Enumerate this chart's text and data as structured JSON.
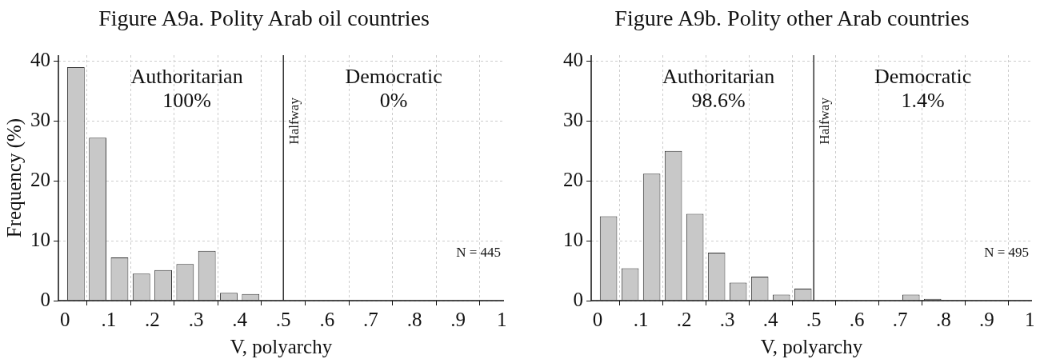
{
  "chart_data": [
    {
      "type": "histogram",
      "title": "Figure A9a. Polity Arab oil countries",
      "xlabel": "V, polyarchy",
      "ylabel": "Frequency (%)",
      "bins": [
        0,
        0.05,
        0.1,
        0.15,
        0.2,
        0.25,
        0.3,
        0.35,
        0.4,
        0.45,
        0.5,
        0.55,
        0.6,
        0.65,
        0.7,
        0.75,
        0.8,
        0.85,
        0.9,
        0.95,
        1
      ],
      "values": [
        39,
        27.2,
        7.2,
        4.5,
        5.1,
        6.1,
        8.3,
        1.3,
        1.1,
        0,
        0,
        0,
        0,
        0,
        0,
        0,
        0,
        0,
        0,
        0
      ],
      "color": "#c8c8c8",
      "xlim": [
        -0.015,
        1.005
      ],
      "xticks": [
        {
          "value": 0,
          "label": "0"
        },
        {
          "value": 0.1,
          "label": ".1"
        },
        {
          "value": 0.2,
          "label": ".2"
        },
        {
          "value": 0.3,
          "label": ".3"
        },
        {
          "value": 0.4,
          "label": ".4"
        },
        {
          "value": 0.5,
          "label": ".5"
        },
        {
          "value": 0.6,
          "label": ".6"
        },
        {
          "value": 0.7,
          "label": ".7"
        },
        {
          "value": 0.8,
          "label": ".8"
        },
        {
          "value": 0.9,
          "label": ".9"
        },
        1
      ],
      "ylim": [
        0,
        41
      ],
      "yticks": [
        0,
        10,
        20,
        30,
        40
      ],
      "grid": true,
      "legend": false,
      "ref_lines": [
        {
          "axis": "x",
          "value": 0.5,
          "label": "Halfway",
          "color": "#333333"
        }
      ],
      "annotations": [
        "Authoritarian\n100%",
        "Democratic\n0%",
        "N = 445"
      ]
    },
    {
      "type": "histogram",
      "title": "Figure A9b. Polity other Arab countries",
      "xlabel": "V, polyarchy",
      "bins": [
        0,
        0.05,
        0.1,
        0.15,
        0.2,
        0.25,
        0.3,
        0.35,
        0.4,
        0.45,
        0.5,
        0.55,
        0.6,
        0.65,
        0.7,
        0.75,
        0.8,
        0.85,
        0.9,
        0.95,
        1
      ],
      "values": [
        14.1,
        5.4,
        21.2,
        25,
        14.5,
        8,
        3,
        4,
        1,
        2,
        0,
        0,
        0,
        0,
        1,
        0.3,
        0,
        0,
        0,
        0
      ],
      "color": "#c8c8c8",
      "xlim": [
        -0.015,
        1.005
      ],
      "xticks": [
        {
          "value": 0,
          "label": "0"
        },
        {
          "value": 0.1,
          "label": ".1"
        },
        {
          "value": 0.2,
          "label": ".2"
        },
        {
          "value": 0.3,
          "label": ".3"
        },
        {
          "value": 0.4,
          "label": ".4"
        },
        {
          "value": 0.5,
          "label": ".5"
        },
        {
          "value": 0.6,
          "label": ".6"
        },
        {
          "value": 0.7,
          "label": ".7"
        },
        {
          "value": 0.8,
          "label": ".8"
        },
        {
          "value": 0.9,
          "label": ".9"
        },
        1
      ],
      "ylim": [
        0,
        41
      ],
      "yticks": [
        0,
        10,
        20,
        30,
        40
      ],
      "grid": true,
      "legend": false,
      "ref_lines": [
        {
          "axis": "x",
          "value": 0.5,
          "label": "Halfway",
          "color": "#333333"
        }
      ],
      "annotations": [
        "Authoritarian\n98.6%",
        "Democratic\n1.4%",
        "N = 495"
      ]
    }
  ]
}
